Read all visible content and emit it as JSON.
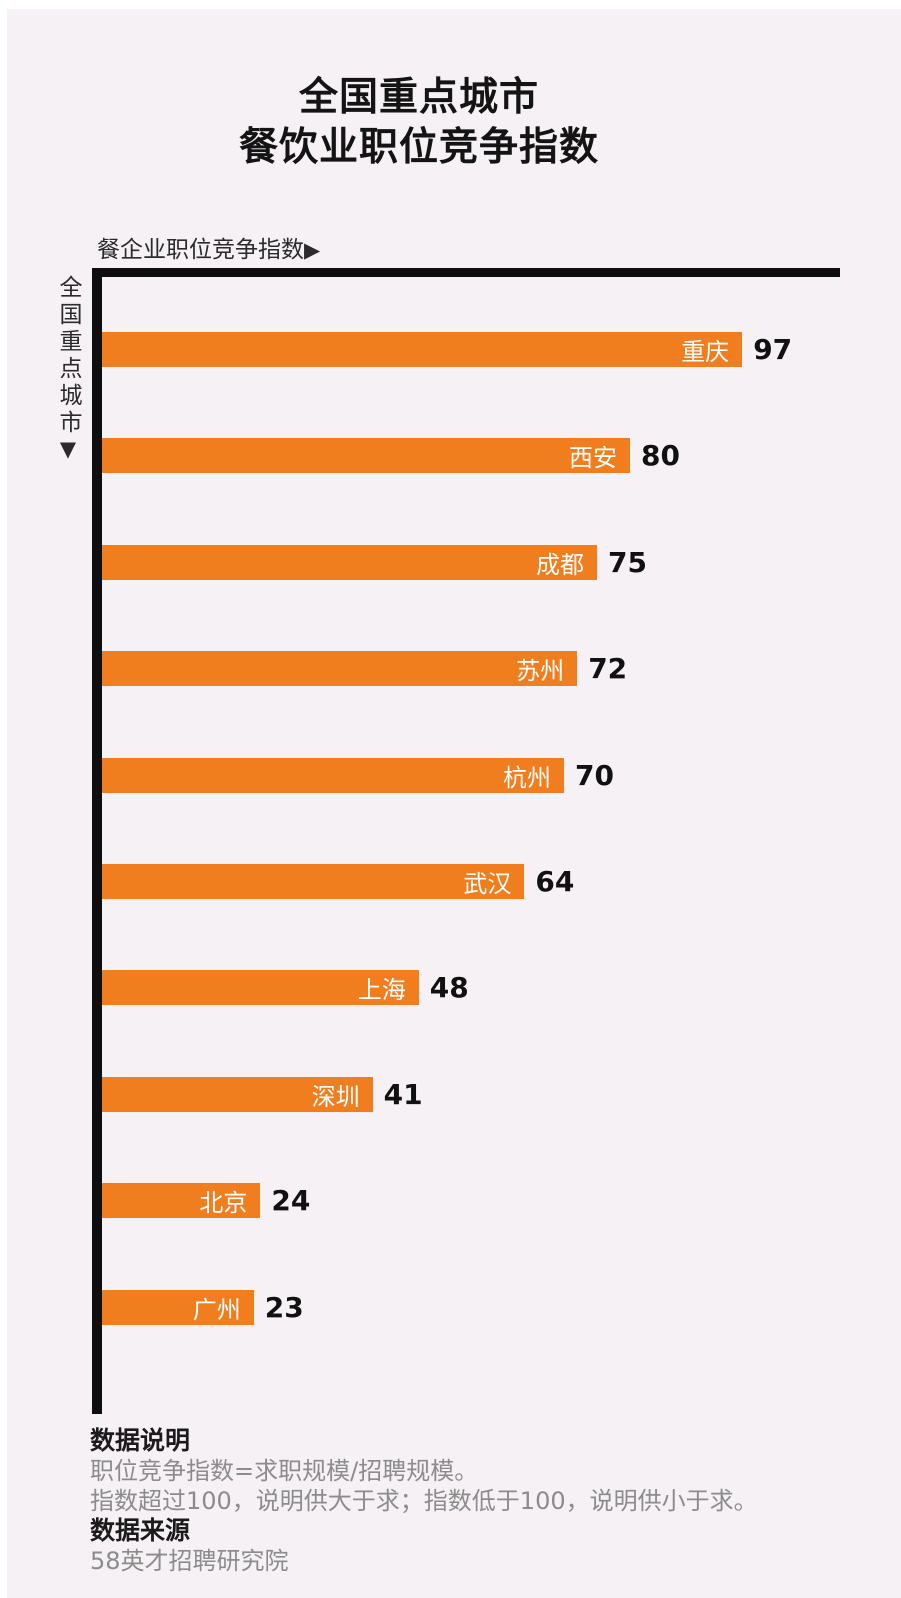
{
  "title": {
    "line1": "全国重点城市",
    "line2": "餐饮业职位竞争指数"
  },
  "axes": {
    "x_label": "餐企业职位竞争指数",
    "x_arrow": "▶",
    "y_label": "全国重点城市",
    "y_arrow": "▼"
  },
  "chart_data": {
    "type": "bar",
    "orientation": "horizontal",
    "title": "全国重点城市 餐饮业职位竞争指数",
    "xlabel": "餐企业职位竞争指数",
    "ylabel": "全国重点城市",
    "categories": [
      "重庆",
      "西安",
      "成都",
      "苏州",
      "杭州",
      "武汉",
      "上海",
      "深圳",
      "北京",
      "广州"
    ],
    "values": [
      97,
      80,
      75,
      72,
      70,
      64,
      48,
      41,
      24,
      23
    ],
    "xlim": [
      0,
      112
    ],
    "grid": false,
    "legend": false,
    "bar_color": "#F07D1E",
    "bar_label_color": "#FFFFFF",
    "value_label_color": "#111111",
    "axis_color": "#0E0E0E",
    "background_color": "#F6F1F4"
  },
  "notes": {
    "explain_title": "数据说明",
    "explain_line1": "职位竞争指数=求职规模/招聘规模。",
    "explain_line2": "指数超过100，说明供大于求；指数低于100，说明供小于求。",
    "source_title": "数据来源",
    "source_line": "58英才招聘研究院"
  }
}
